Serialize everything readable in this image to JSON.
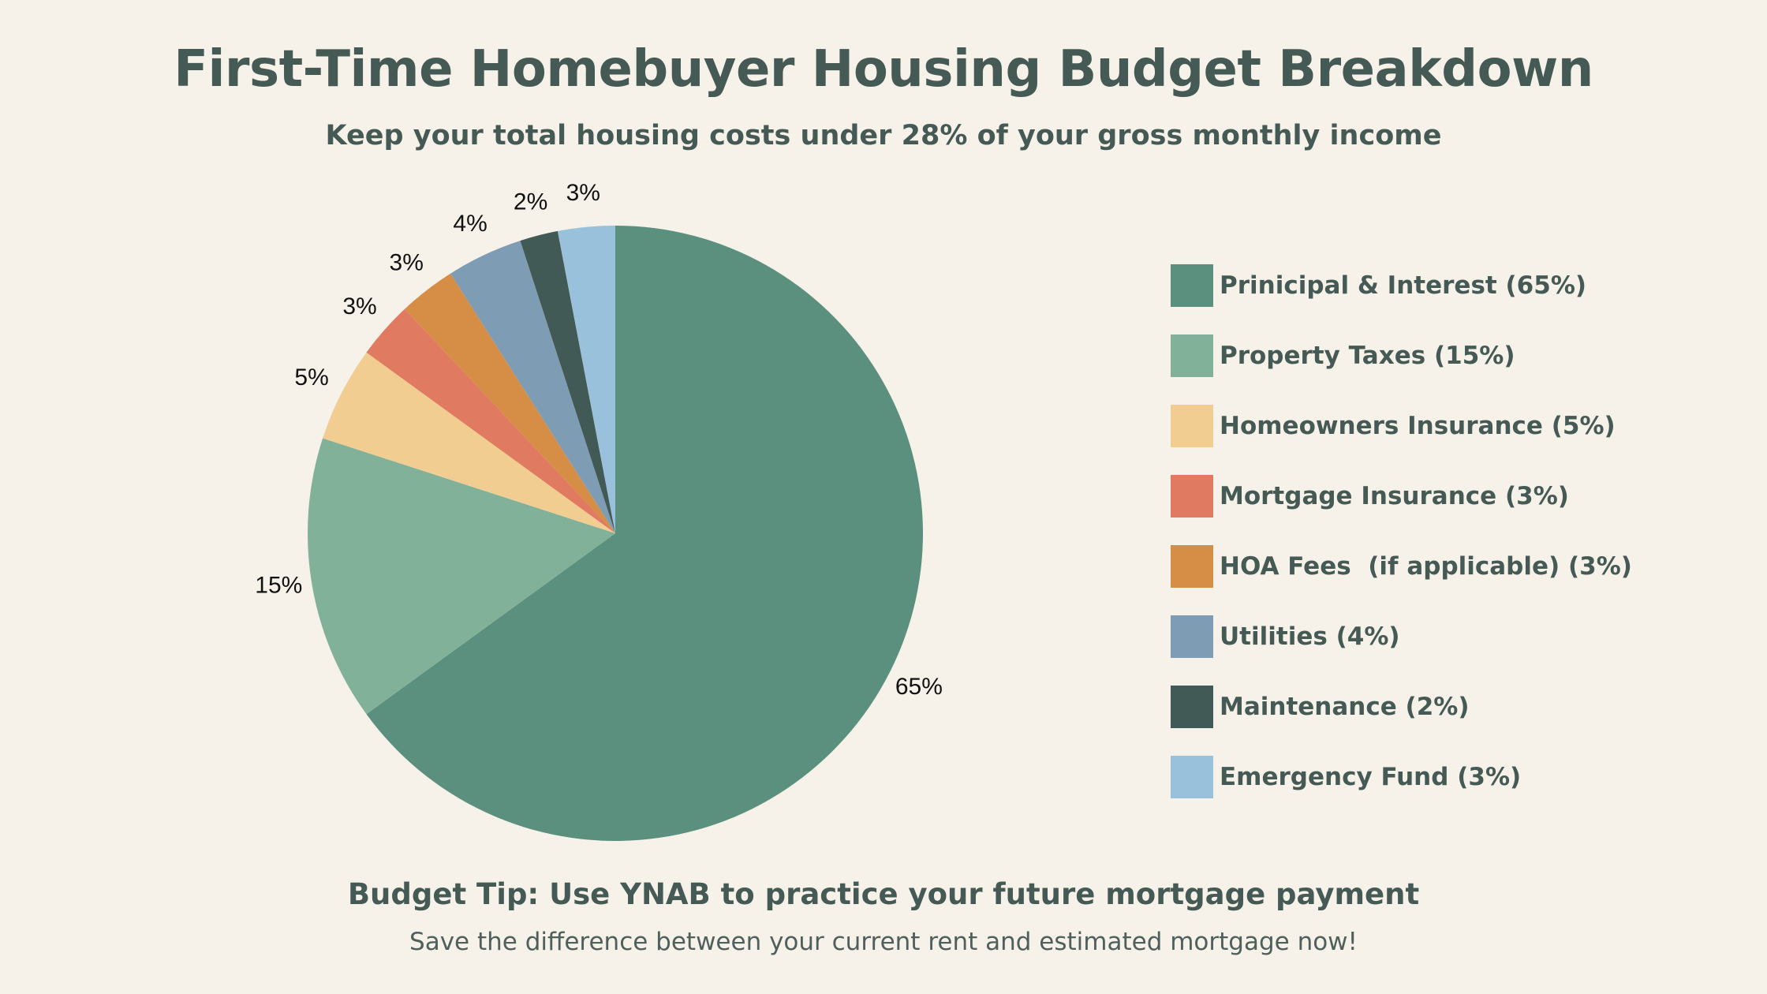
{
  "header": {
    "title": "First-Time Homebuyer Housing Budget Breakdown",
    "subtitle": "Keep your total housing costs under 28% of your gross monthly income"
  },
  "chart_data": {
    "type": "pie",
    "title": "First-Time Homebuyer Housing Budget Breakdown",
    "start_angle": "top, clockwise",
    "legend_position": "right",
    "slices": [
      {
        "label": "Prinicipal & Interest (65%)",
        "value": 65,
        "value_label": "65%",
        "color": "#5b8f7e"
      },
      {
        "label": "Property Taxes (15%)",
        "value": 15,
        "value_label": "15%",
        "color": "#82b19a"
      },
      {
        "label": "Homeowners Insurance (5%)",
        "value": 5,
        "value_label": "5%",
        "color": "#f2cd92"
      },
      {
        "label": "Mortgage Insurance (3%)",
        "value": 3,
        "value_label": "3%",
        "color": "#e07a60"
      },
      {
        "label": "HOA Fees  (if applicable) (3%)",
        "value": 3,
        "value_label": "3%",
        "color": "#d68d45"
      },
      {
        "label": "Utilities (4%)",
        "value": 4,
        "value_label": "4%",
        "color": "#7e9cb3"
      },
      {
        "label": "Maintenance (2%)",
        "value": 2,
        "value_label": "2%",
        "color": "#425a55"
      },
      {
        "label": "Emergency Fund (3%)",
        "value": 3,
        "value_label": "3%",
        "color": "#9ac1db"
      }
    ]
  },
  "footer": {
    "tip": "Budget Tip: Use YNAB to practice your future mortgage payment",
    "note": "Save the difference between your current rent and estimated mortgage now!"
  }
}
